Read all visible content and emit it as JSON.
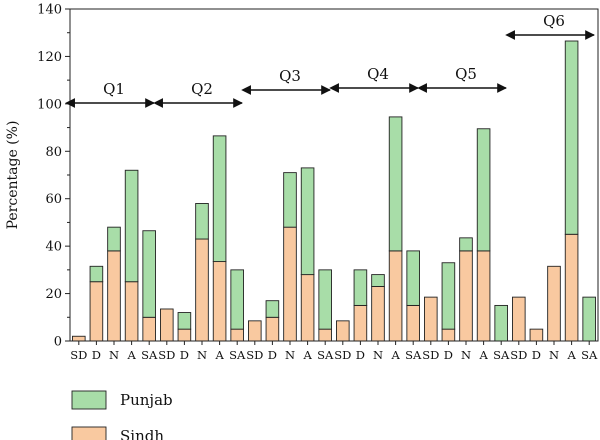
{
  "chart_data": {
    "type": "bar",
    "stacked": true,
    "ylabel": "Percentage (%)",
    "xlabel": "",
    "ylim": [
      0,
      140
    ],
    "yticks": [
      0,
      20,
      40,
      60,
      80,
      100,
      120,
      140
    ],
    "legend_position": "bottom-left",
    "categories": [
      "SD",
      "D",
      "N",
      "A",
      "SA",
      "SD",
      "D",
      "N",
      "A",
      "SA",
      "SD",
      "D",
      "N",
      "A",
      "SA",
      "SD",
      "D",
      "N",
      "A",
      "SA",
      "SD",
      "D",
      "N",
      "A",
      "SA",
      "SD",
      "D",
      "N",
      "A",
      "SA"
    ],
    "groups": [
      {
        "label": "Q1",
        "start": 0,
        "end": 4
      },
      {
        "label": "Q2",
        "start": 5,
        "end": 9
      },
      {
        "label": "Q3",
        "start": 10,
        "end": 14
      },
      {
        "label": "Q4",
        "start": 15,
        "end": 19
      },
      {
        "label": "Q5",
        "start": 20,
        "end": 24
      },
      {
        "label": "Q6",
        "start": 25,
        "end": 29
      }
    ],
    "series": [
      {
        "name": "Sindh",
        "color": "#f9c9a0",
        "values": [
          2,
          25,
          38,
          25,
          10,
          13.5,
          5,
          43,
          33.5,
          5,
          8.5,
          10,
          48,
          28,
          5,
          8.5,
          15,
          23,
          38,
          15,
          18.5,
          5,
          38,
          38,
          0,
          18.5,
          5,
          31.5,
          45,
          0
        ]
      },
      {
        "name": "Punjab",
        "color": "#a8dda8",
        "values": [
          0,
          6.5,
          10,
          47,
          36.5,
          0,
          7,
          15,
          53,
          25,
          0,
          7,
          23,
          45,
          25,
          0,
          15,
          5,
          56.5,
          23,
          0,
          28,
          5.5,
          51.5,
          15,
          0,
          0,
          0,
          81.5,
          18.5
        ]
      }
    ]
  }
}
